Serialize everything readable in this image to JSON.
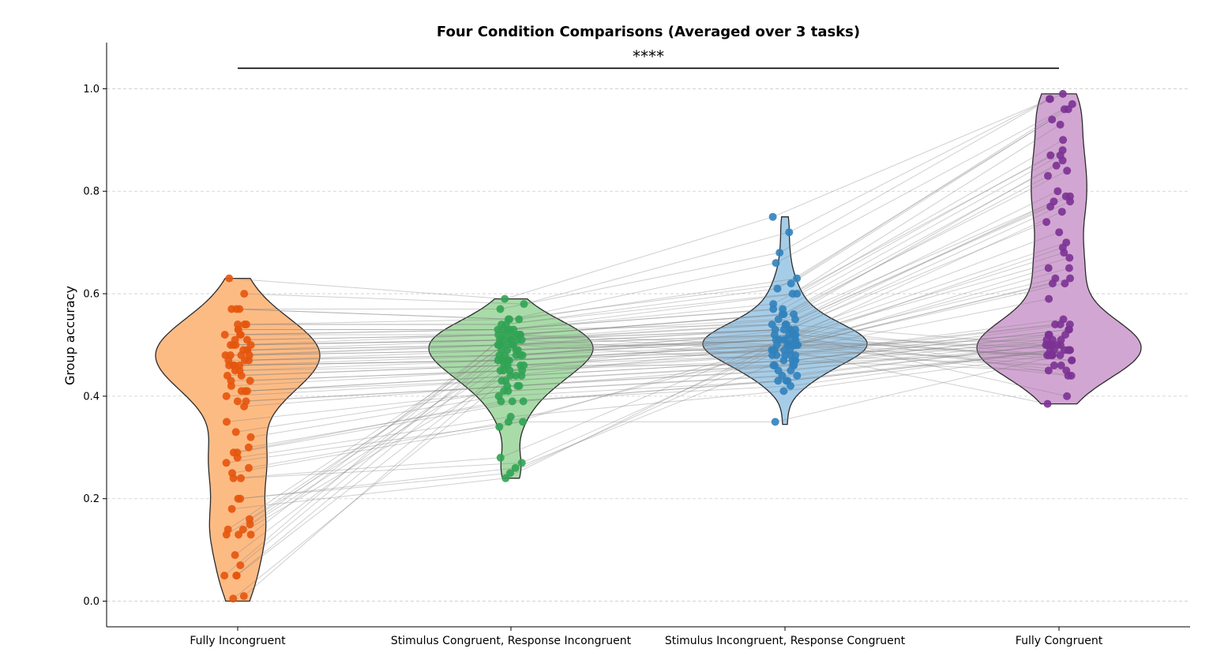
{
  "chart_data": {
    "type": "violin",
    "title": "Four Condition Comparisons (Averaged over 3 tasks)",
    "xlabel": "",
    "ylabel": "Group accuracy",
    "ylim": [
      -0.05,
      1.09
    ],
    "yticks": [
      0.0,
      0.2,
      0.4,
      0.6,
      0.8,
      1.0
    ],
    "ytick_labels": [
      "0.0",
      "0.2",
      "0.4",
      "0.6",
      "0.8",
      "1.0"
    ],
    "grid": "horizontal dashed",
    "significance": {
      "label": "****",
      "from": "Fully Incongruent",
      "to": "Fully Congruent",
      "y": 1.04
    },
    "categories": [
      "Fully Incongruent",
      "Stimulus Congruent, Response Incongruent",
      "Stimulus Incongruent, Response Congruent",
      "Fully Congruent"
    ],
    "colors": {
      "fill": [
        "#fdbb84",
        "#a8dba8",
        "#a6cde8",
        "#d2a6d2"
      ],
      "point": [
        "#e6550d",
        "#31a354",
        "#3182bd",
        "#7b3294"
      ],
      "line": "#808080",
      "outline": "#2b2b2b"
    },
    "violin_range": [
      [
        0.0,
        0.63
      ],
      [
        0.24,
        0.59
      ],
      [
        0.345,
        0.75
      ],
      [
        0.385,
        0.99
      ]
    ],
    "series": [
      {
        "name": "Fully Incongruent",
        "values": [
          0.63,
          0.6,
          0.57,
          0.57,
          0.57,
          0.54,
          0.54,
          0.54,
          0.53,
          0.53,
          0.52,
          0.52,
          0.52,
          0.51,
          0.51,
          0.5,
          0.5,
          0.5,
          0.5,
          0.49,
          0.49,
          0.49,
          0.48,
          0.48,
          0.48,
          0.48,
          0.47,
          0.47,
          0.47,
          0.46,
          0.46,
          0.46,
          0.46,
          0.45,
          0.45,
          0.44,
          0.44,
          0.43,
          0.43,
          0.42,
          0.41,
          0.41,
          0.41,
          0.4,
          0.39,
          0.39,
          0.38,
          0.35,
          0.33,
          0.32,
          0.3,
          0.29,
          0.29,
          0.28,
          0.27,
          0.26,
          0.25,
          0.24,
          0.24,
          0.2,
          0.2,
          0.18,
          0.16,
          0.15,
          0.14,
          0.14,
          0.13,
          0.13,
          0.13,
          0.09,
          0.07,
          0.05,
          0.05,
          0.05,
          0.01,
          0.005
        ]
      },
      {
        "name": "Stimulus Congruent, Response Incongruent",
        "values": [
          0.59,
          0.58,
          0.57,
          0.55,
          0.55,
          0.55,
          0.54,
          0.54,
          0.53,
          0.53,
          0.53,
          0.53,
          0.52,
          0.52,
          0.52,
          0.52,
          0.51,
          0.51,
          0.51,
          0.51,
          0.5,
          0.5,
          0.5,
          0.5,
          0.49,
          0.49,
          0.49,
          0.48,
          0.48,
          0.48,
          0.47,
          0.47,
          0.47,
          0.47,
          0.46,
          0.46,
          0.46,
          0.45,
          0.45,
          0.45,
          0.44,
          0.44,
          0.43,
          0.43,
          0.42,
          0.42,
          0.42,
          0.41,
          0.41,
          0.4,
          0.39,
          0.39,
          0.39,
          0.36,
          0.35,
          0.35,
          0.34,
          0.28,
          0.27,
          0.26,
          0.25,
          0.24,
          0.5,
          0.51,
          0.52,
          0.48,
          0.47,
          0.53,
          0.46,
          0.49,
          0.5,
          0.51,
          0.45,
          0.52,
          0.48,
          0.44
        ]
      },
      {
        "name": "Stimulus Incongruent, Response Congruent",
        "values": [
          0.75,
          0.72,
          0.68,
          0.66,
          0.63,
          0.62,
          0.61,
          0.6,
          0.6,
          0.58,
          0.57,
          0.57,
          0.56,
          0.56,
          0.56,
          0.55,
          0.55,
          0.54,
          0.54,
          0.53,
          0.53,
          0.53,
          0.52,
          0.52,
          0.52,
          0.51,
          0.51,
          0.51,
          0.51,
          0.5,
          0.5,
          0.5,
          0.5,
          0.49,
          0.49,
          0.49,
          0.48,
          0.48,
          0.48,
          0.47,
          0.47,
          0.47,
          0.46,
          0.46,
          0.46,
          0.45,
          0.45,
          0.44,
          0.44,
          0.43,
          0.43,
          0.43,
          0.42,
          0.41,
          0.35,
          0.5,
          0.51,
          0.52,
          0.49,
          0.48,
          0.5,
          0.51,
          0.47,
          0.53,
          0.5,
          0.52,
          0.49,
          0.54,
          0.46,
          0.51,
          0.5,
          0.48,
          0.52,
          0.49,
          0.53,
          0.5
        ]
      },
      {
        "name": "Fully Congruent",
        "values": [
          0.99,
          0.98,
          0.98,
          0.97,
          0.96,
          0.96,
          0.94,
          0.93,
          0.9,
          0.88,
          0.87,
          0.87,
          0.86,
          0.85,
          0.84,
          0.83,
          0.8,
          0.79,
          0.79,
          0.78,
          0.78,
          0.77,
          0.76,
          0.74,
          0.72,
          0.7,
          0.69,
          0.68,
          0.67,
          0.65,
          0.65,
          0.63,
          0.63,
          0.62,
          0.62,
          0.59,
          0.55,
          0.54,
          0.54,
          0.54,
          0.53,
          0.53,
          0.52,
          0.52,
          0.51,
          0.51,
          0.5,
          0.5,
          0.5,
          0.49,
          0.49,
          0.49,
          0.49,
          0.48,
          0.48,
          0.48,
          0.48,
          0.47,
          0.47,
          0.46,
          0.46,
          0.45,
          0.45,
          0.44,
          0.44,
          0.4,
          0.385,
          0.5,
          0.49,
          0.48,
          0.51,
          0.5,
          0.49,
          0.52,
          0.48,
          0.5
        ]
      }
    ]
  }
}
